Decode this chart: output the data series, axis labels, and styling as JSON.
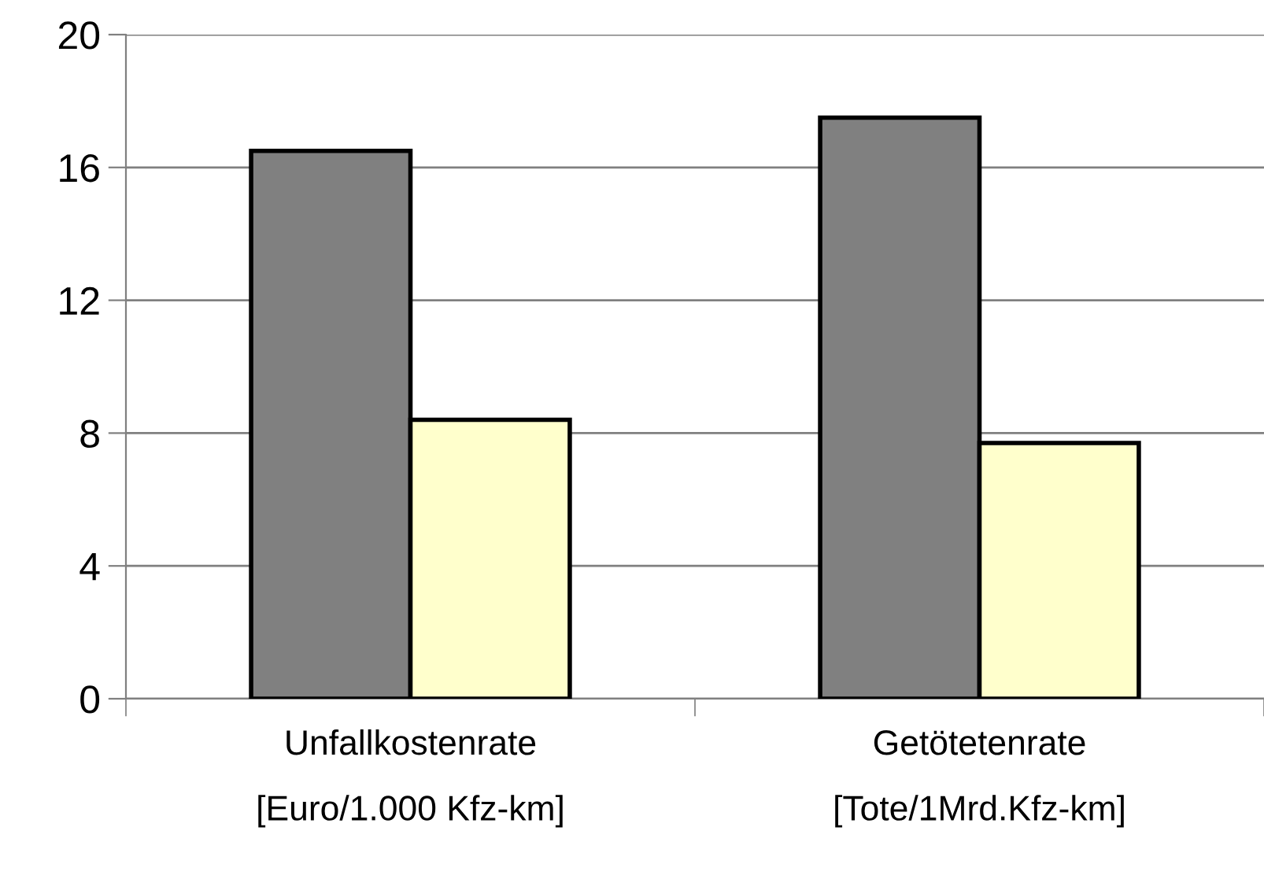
{
  "chart_data": {
    "type": "bar",
    "categories": [
      "Unfallkostenrate\n[Euro/1.000 Kfz-km]",
      "Getötetenrate\n[Tote/1Mrd.Kfz-km]"
    ],
    "series": [
      {
        "color": "#808080",
        "values": [
          16.5,
          17.5
        ]
      },
      {
        "color": "#ffffcc",
        "values": [
          8.4,
          7.7
        ]
      }
    ],
    "ylim": [
      0,
      20
    ],
    "yticks": [
      0,
      4,
      8,
      12,
      16,
      20
    ],
    "grid": "y",
    "legend": false
  }
}
